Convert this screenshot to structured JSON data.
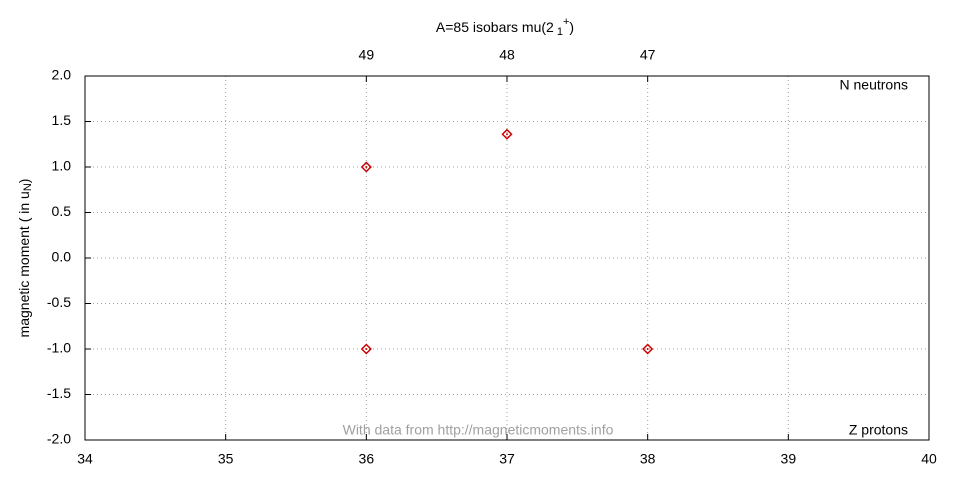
{
  "chart_data": {
    "type": "scatter",
    "title": {
      "text": "A=85 isobars mu(2",
      "sub": "1",
      "sup": "+",
      "close": ")"
    },
    "y_label": {
      "text": "magnetic moment ( in u",
      "sub": "N",
      "close": ")"
    },
    "annotations": [
      "N neutrons",
      "Z protons",
      "With data from http://magneticmoments.info"
    ],
    "x": [
      36,
      37,
      36,
      38
    ],
    "values": [
      1.0,
      1.36,
      -1.0,
      -1.0
    ],
    "color": "#cc0000",
    "xlim": [
      34,
      40
    ],
    "xticks": [
      34,
      35,
      36,
      37,
      38,
      39,
      40
    ],
    "x2ticks": [
      {
        "value": 36,
        "label": "49"
      },
      {
        "value": 37,
        "label": "48"
      },
      {
        "value": 38,
        "label": "47"
      }
    ],
    "ylim": [
      -2,
      2
    ],
    "yticks": [
      {
        "value": 2,
        "label": "2.0"
      },
      1.5,
      {
        "value": 1,
        "label": "1.0"
      },
      0.5,
      {
        "value": 0,
        "label": "0.0"
      },
      -0.5,
      {
        "value": -1,
        "label": "-1.0"
      },
      -1.5,
      {
        "value": -2,
        "label": "-2.0"
      }
    ],
    "grid": true
  }
}
